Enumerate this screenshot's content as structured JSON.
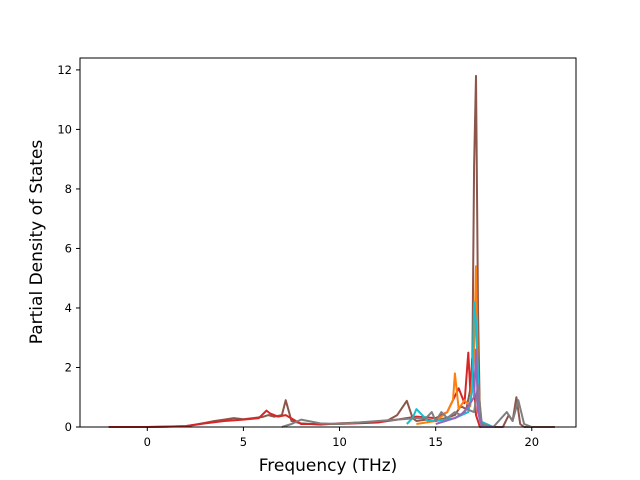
{
  "chart_data": {
    "type": "line",
    "title": "",
    "xlabel": "Frequency (THz)",
    "ylabel": "Partial Density of States",
    "xlim": [
      -3.5,
      22.3
    ],
    "ylim": [
      0,
      12.4
    ],
    "xticks": [
      0,
      5,
      10,
      15,
      20
    ],
    "yticks": [
      0,
      2,
      4,
      6,
      8,
      10,
      12
    ],
    "grid": false,
    "legend": "none",
    "series": [
      {
        "color": "#8c564b",
        "x": [
          -2,
          0,
          1,
          2,
          2.5,
          3,
          3.5,
          4,
          4.5,
          5,
          5.5,
          6,
          6.3,
          6.6,
          7,
          7.2,
          7.5,
          8,
          9,
          10,
          11,
          12,
          12.5,
          13,
          13.5,
          13.8,
          14,
          14.5,
          15,
          15.5,
          16,
          16.3,
          16.6,
          16.9,
          17,
          17.1,
          17.2,
          17.3,
          17.5,
          18,
          18.5,
          18.8,
          19,
          19.2,
          19.4,
          19.6,
          20,
          21.2
        ],
        "y": [
          0,
          0,
          0.01,
          0.03,
          0.08,
          0.14,
          0.2,
          0.25,
          0.3,
          0.26,
          0.3,
          0.34,
          0.4,
          0.35,
          0.4,
          0.9,
          0.2,
          0.12,
          0.08,
          0.12,
          0.15,
          0.17,
          0.22,
          0.4,
          0.88,
          0.3,
          0.2,
          0.25,
          0.2,
          0.3,
          0.4,
          0.7,
          0.6,
          1.6,
          8.8,
          11.8,
          4.0,
          0.3,
          0,
          0,
          0,
          0.4,
          0.2,
          1.0,
          0.1,
          0,
          0,
          0
        ]
      },
      {
        "color": "#d62728",
        "x": [
          -2,
          0,
          2,
          3,
          4,
          5,
          5.8,
          6.2,
          6.4,
          6.8,
          7.2,
          8,
          10,
          12,
          13,
          14,
          15,
          15.6,
          16.2,
          16.5,
          16.7,
          16.8,
          16.9,
          17.1,
          17.3,
          18
        ],
        "y": [
          0,
          0,
          0.03,
          0.12,
          0.2,
          0.25,
          0.3,
          0.55,
          0.45,
          0.35,
          0.4,
          0.1,
          0.1,
          0.15,
          0.25,
          0.35,
          0.3,
          0.5,
          1.3,
          0.8,
          2.5,
          1.2,
          2.3,
          0.4,
          0,
          0
        ]
      },
      {
        "color": "#ff7f0e",
        "x": [
          14,
          15,
          15.6,
          15.9,
          16,
          16.2,
          16.5,
          16.8,
          17,
          17.1,
          17.2,
          17.4,
          18
        ],
        "y": [
          0.1,
          0.2,
          0.5,
          0.9,
          1.8,
          0.6,
          0.9,
          0.7,
          2.5,
          5.4,
          1.5,
          0,
          0
        ]
      },
      {
        "color": "#17becf",
        "x": [
          13.5,
          13.8,
          14,
          14.3,
          14.6,
          15,
          16,
          16.7,
          16.9,
          17,
          17.1,
          17.3,
          18
        ],
        "y": [
          0.1,
          0.3,
          0.6,
          0.4,
          0.2,
          0.2,
          0.3,
          0.5,
          1.2,
          4.2,
          3.5,
          0.2,
          0
        ]
      },
      {
        "color": "#7f7f7f",
        "x": [
          7,
          7.5,
          8,
          9,
          10,
          11,
          12,
          13,
          14,
          14.5,
          14.8,
          15,
          15.3,
          15.6,
          16,
          16.3,
          16.6,
          17,
          17.2,
          17.4,
          18,
          18.7,
          19,
          19.3,
          19.6,
          20
        ],
        "y": [
          0,
          0.1,
          0.25,
          0.12,
          0.1,
          0.15,
          0.2,
          0.25,
          0.3,
          0.3,
          0.5,
          0.2,
          0.5,
          0.3,
          0.5,
          0.4,
          0.6,
          0.5,
          1.4,
          0.1,
          0,
          0.5,
          0.2,
          0.9,
          0.1,
          0
        ]
      },
      {
        "color": "#9467bd",
        "x": [
          15,
          16,
          16.5,
          17,
          17.1,
          17.2,
          17.4,
          18
        ],
        "y": [
          0.1,
          0.3,
          0.5,
          1.0,
          2.6,
          0.5,
          0,
          0
        ]
      }
    ]
  }
}
